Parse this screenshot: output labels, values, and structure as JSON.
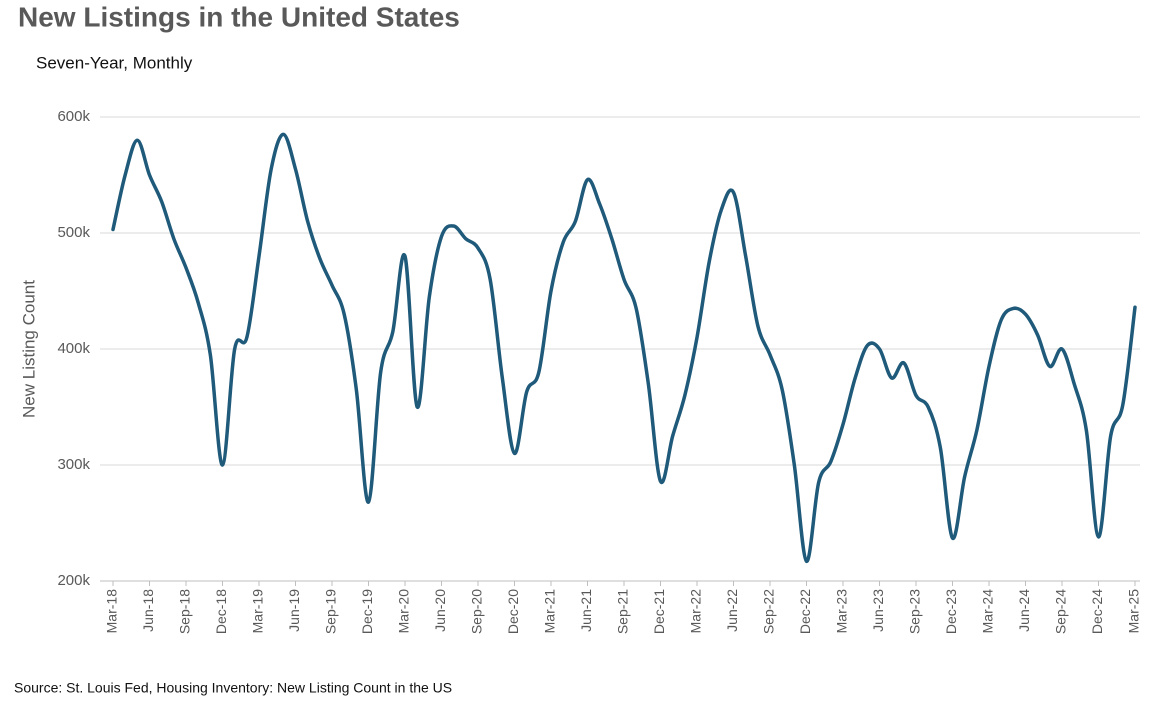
{
  "chart_data": {
    "type": "line",
    "title": "New Listings in the United States",
    "subtitle": "Seven-Year, Monthly",
    "ylabel": "New Listing Count",
    "source": "Source: St. Louis Fed, Housing Inventory: New Listing Count in the US",
    "categories": [
      "Mar-18",
      null,
      null,
      "Jun-18",
      null,
      null,
      "Sep-18",
      null,
      null,
      "Dec-18",
      null,
      null,
      "Mar-19",
      null,
      null,
      "Jun-19",
      null,
      null,
      "Sep-19",
      null,
      null,
      "Dec-19",
      null,
      null,
      "Mar-20",
      null,
      null,
      "Jun-20",
      null,
      null,
      "Sep-20",
      null,
      null,
      "Dec-20",
      null,
      null,
      "Mar-21",
      null,
      null,
      "Jun-21",
      null,
      null,
      "Sep-21",
      null,
      null,
      "Dec-21",
      null,
      null,
      "Mar-22",
      null,
      null,
      "Jun-22",
      null,
      null,
      "Sep-22",
      null,
      null,
      "Dec-22",
      null,
      null,
      "Mar-23",
      null,
      null,
      "Jun-23",
      null,
      null,
      "Sep-23",
      null,
      null,
      "Dec-23",
      null,
      null,
      "Mar-24",
      null,
      null,
      "Jun-24",
      null,
      null,
      "Sep-24",
      null,
      null,
      "Dec-24",
      null,
      null,
      "Mar-25"
    ],
    "series": [
      {
        "name": "New Listing Count",
        "color": "#1f5a7a",
        "values": [
          503000,
          550000,
          580000,
          550000,
          527000,
          495000,
          470000,
          440000,
          395000,
          300000,
          400000,
          410000,
          480000,
          555000,
          585000,
          555000,
          510000,
          478000,
          455000,
          430000,
          365000,
          268000,
          380000,
          415000,
          480000,
          350000,
          445000,
          497000,
          506000,
          495000,
          487000,
          460000,
          375000,
          310000,
          363000,
          380000,
          450000,
          492000,
          510000,
          546000,
          525000,
          495000,
          460000,
          435000,
          370000,
          286000,
          325000,
          360000,
          410000,
          475000,
          520000,
          535000,
          480000,
          420000,
          395000,
          365000,
          300000,
          217000,
          285000,
          303000,
          335000,
          375000,
          403000,
          400000,
          375000,
          388000,
          360000,
          350000,
          315000,
          237000,
          290000,
          330000,
          385000,
          425000,
          435000,
          430000,
          412000,
          385000,
          400000,
          370000,
          330000,
          238000,
          325000,
          352000,
          436000
        ]
      }
    ],
    "ylim": [
      200000,
      600000
    ],
    "yticks": [
      {
        "value": 200000,
        "label": "200k"
      },
      {
        "value": 300000,
        "label": "300k"
      },
      {
        "value": 400000,
        "label": "400k"
      },
      {
        "value": 500000,
        "label": "500k"
      },
      {
        "value": 600000,
        "label": "600k"
      }
    ],
    "grid": true
  }
}
